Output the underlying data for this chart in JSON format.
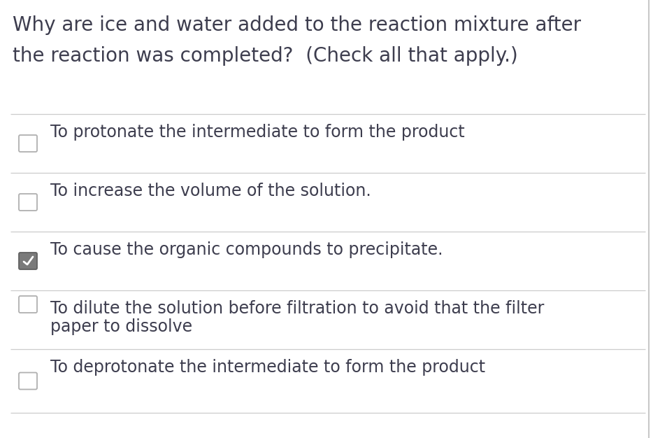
{
  "background_color": "#ffffff",
  "title_line1": "Why are ice and water added to the reaction mixture after",
  "title_line2": "the reaction was completed?  (Check all that apply.)",
  "title_color": "#3d3d4e",
  "title_fontsize": 20,
  "options": [
    {
      "lines": [
        "To protonate the intermediate to form the product"
      ],
      "checked": false
    },
    {
      "lines": [
        "To increase the volume of the solution."
      ],
      "checked": false
    },
    {
      "lines": [
        "To cause the organic compounds to precipitate."
      ],
      "checked": true
    },
    {
      "lines": [
        "To dilute the solution before filtration to avoid that the filter",
        "paper to dissolve"
      ],
      "checked": false
    },
    {
      "lines": [
        "To deprotonate the intermediate to form the product"
      ],
      "checked": false
    }
  ],
  "option_fontsize": 17,
  "option_text_color": "#3d3d4e",
  "divider_color": "#cccccc",
  "checkbox_unchecked_facecolor": "#ffffff",
  "checkbox_unchecked_edgecolor": "#b0b0b0",
  "checkbox_checked_facecolor": "#7a7a7a",
  "checkbox_checked_edgecolor": "#606060",
  "checkmark_color": "#ffffff",
  "right_bar_color": "#c8c8c8",
  "fig_width": 9.44,
  "fig_height": 6.26,
  "dpi": 100
}
